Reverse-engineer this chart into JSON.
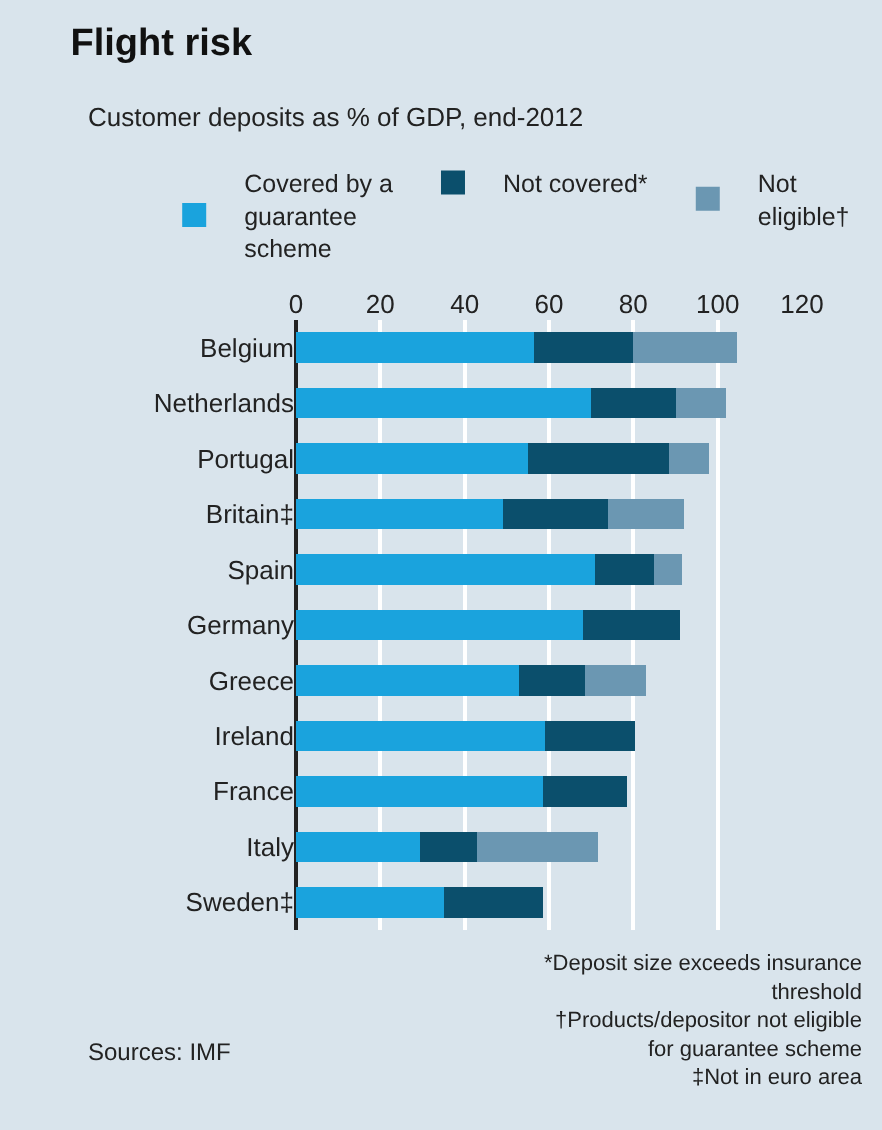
{
  "chart_data": {
    "type": "bar",
    "orientation": "horizontal",
    "stacked": true,
    "title": "Flight risk",
    "subtitle": "Customer deposits as % of GDP, end-2012",
    "categories": [
      "Belgium",
      "Netherlands",
      "Portugal",
      "Britain‡",
      "Spain",
      "Germany",
      "Greece",
      "Ireland",
      "France",
      "Italy",
      "Sweden‡"
    ],
    "series": [
      {
        "name": "Covered by a guarantee scheme",
        "color": "#1aa3dd",
        "values": [
          56.5,
          70,
          55,
          49,
          71,
          68,
          53,
          59,
          58.5,
          29.5,
          35
        ]
      },
      {
        "name": "Not covered*",
        "color": "#0b4f6c",
        "values": [
          23.5,
          20,
          33.5,
          25,
          14,
          23,
          15.5,
          21.5,
          20,
          13.5,
          23.5
        ]
      },
      {
        "name": "Not eligible†",
        "color": "#6b97b2",
        "values": [
          24.5,
          12,
          9.5,
          18,
          6.5,
          null,
          14.5,
          null,
          null,
          28.5,
          null
        ]
      }
    ],
    "xlim": [
      0,
      120
    ],
    "xticks": [
      0,
      20,
      40,
      60,
      80,
      100,
      120
    ],
    "grid": "x",
    "legend": "top",
    "annotations": [
      "Sources: IMF",
      "*Deposit size exceeds insurance threshold",
      "†Products/depositor not eligible for guarantee scheme",
      "‡Not in euro area"
    ]
  }
}
